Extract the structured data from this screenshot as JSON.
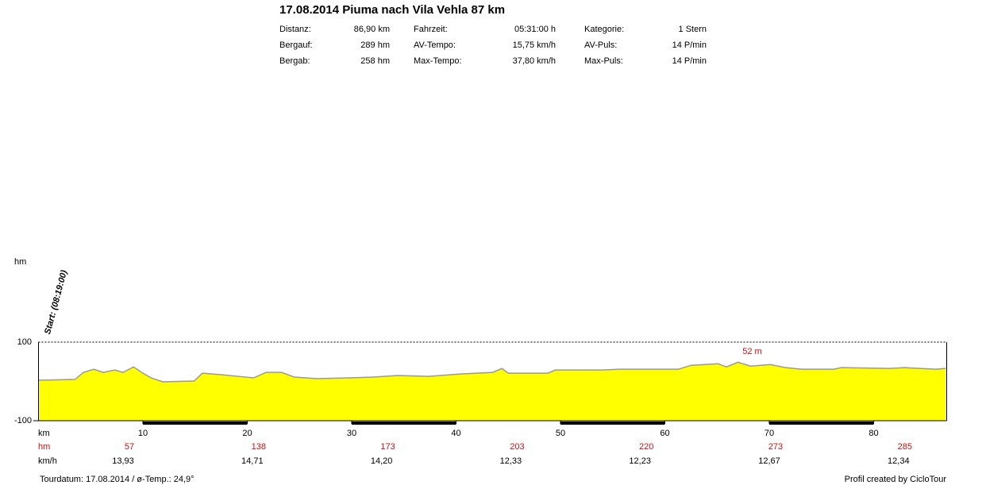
{
  "header": {
    "title": "17.08.2014 Piuma nach Vila Vehla 87 km",
    "stats": [
      [
        [
          "Distanz:",
          "86,90 km"
        ],
        [
          "Fahrzeit:",
          "05:31:00 h"
        ],
        [
          "Kategorie:",
          "1 Stern"
        ]
      ],
      [
        [
          "Bergauf:",
          "289 hm"
        ],
        [
          "AV-Tempo:",
          "15,75 km/h"
        ],
        [
          "AV-Puls:",
          "14 P/min"
        ]
      ],
      [
        [
          "Bergab:",
          "258 hm"
        ],
        [
          "Max-Tempo:",
          "37,80 km/h"
        ],
        [
          "Max-Puls:",
          "14 P/min"
        ]
      ]
    ]
  },
  "chart_data": {
    "type": "area",
    "y_label": "hm",
    "x_label": "km",
    "start_label": "Start: (08:19:00)",
    "peak_label": "52 m",
    "x": [
      0,
      3.5,
      4.3,
      5.3,
      6.2,
      7.3,
      8.1,
      9.1,
      10.0,
      10.8,
      11.9,
      14.9,
      15.7,
      17.6,
      19.1,
      20.6,
      21.8,
      23.3,
      24.5,
      26.7,
      29.8,
      32.1,
      34.3,
      37.4,
      40.4,
      43.5,
      44.4,
      45.0,
      48.8,
      49.5,
      54.1,
      55.6,
      61.3,
      62.5,
      65.1,
      65.9,
      67.0,
      68.2,
      70.1,
      71.6,
      73.1,
      76.2,
      76.9,
      81.5,
      83.0,
      86.0,
      86.9
    ],
    "values": [
      3,
      5,
      23,
      31,
      23,
      29,
      23,
      37,
      21,
      9,
      -1,
      1,
      21,
      17,
      13,
      9,
      23,
      23,
      11,
      7,
      9,
      11,
      15,
      13,
      19,
      23,
      33,
      21,
      21,
      29,
      29,
      31,
      31,
      41,
      45,
      37,
      49,
      39,
      43,
      35,
      31,
      31,
      35,
      33,
      35,
      31,
      33
    ],
    "color": "#ffff00",
    "line_color": "#999999",
    "xlim": [
      0,
      87
    ],
    "xticks": [
      10,
      20,
      30,
      40,
      50,
      60,
      70,
      80
    ],
    "ylim": [
      -100,
      100
    ],
    "yticks": [
      -100,
      100
    ],
    "segment_rows": {
      "hm_label": "hm",
      "hm": [
        57,
        138,
        173,
        203,
        220,
        273,
        285
      ],
      "speed_label": "km/h",
      "speed": [
        13.93,
        14.71,
        14.2,
        12.33,
        12.23,
        12.67,
        12.34
      ],
      "speed_labels": [
        "13,93",
        "14,71",
        "14,20",
        "12,33",
        "12,23",
        "12,67",
        "12,34"
      ]
    }
  },
  "footer": {
    "left": "Tourdatum: 17.08.2014  /  ø-Temp.: 24,9°",
    "right": "Profil created by CicloTour"
  }
}
